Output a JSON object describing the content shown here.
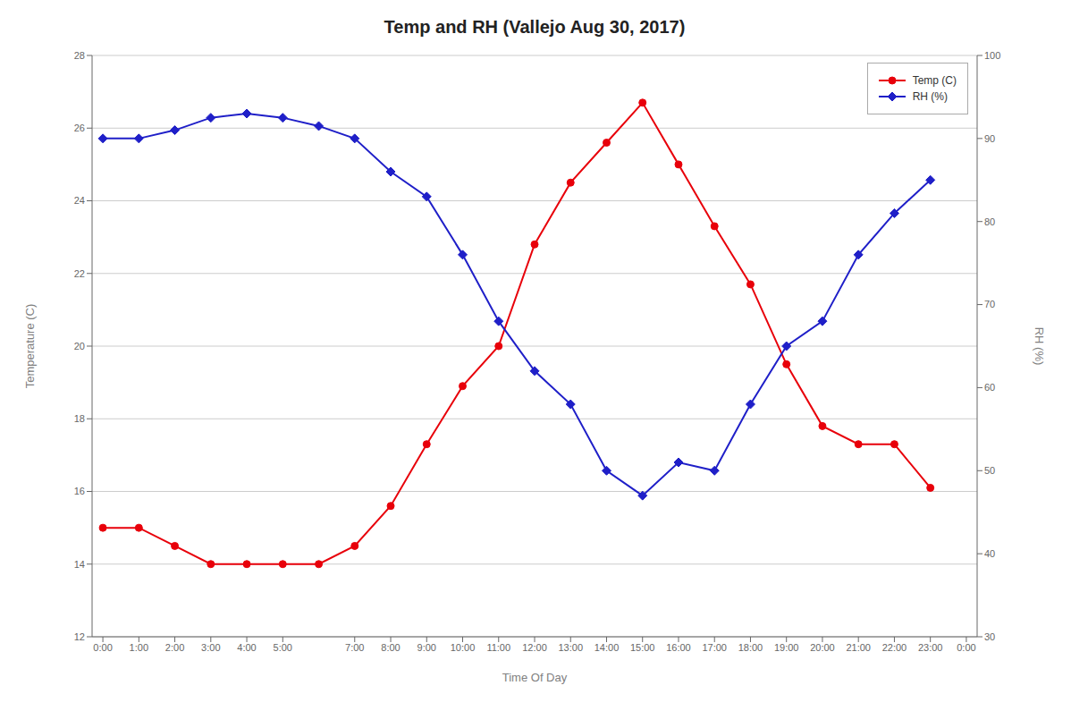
{
  "chart_data": {
    "type": "line",
    "title": "Temp and RH (Vallejo Aug 30, 2017)",
    "xlabel": "Time Of Day",
    "ylabel": "Temperature (C)",
    "y2label": "RH (%)",
    "x": [
      0,
      1,
      2,
      3,
      4,
      5,
      6,
      7,
      8,
      9,
      10,
      11,
      12,
      13,
      14,
      15,
      16,
      17,
      18,
      19,
      20,
      21,
      22,
      23
    ],
    "series": [
      {
        "name": "Temp (C)",
        "color": "#E8000A",
        "marker": "circle",
        "line_style": "solid",
        "values": [
          15.0,
          15.0,
          14.5,
          14.0,
          14.0,
          14.0,
          14.0,
          14.5,
          15.6,
          17.3,
          18.9,
          20.0,
          22.8,
          24.5,
          25.6,
          26.7,
          25.0,
          23.3,
          21.7,
          19.5,
          17.8,
          17.3,
          17.3,
          16.1
        ]
      },
      {
        "name": "RH (%)",
        "color": "#1F1FC8",
        "marker": "diamond",
        "line_style": "solid",
        "axis": "y2",
        "values": [
          90,
          90,
          91,
          92.5,
          93,
          92.5,
          91.5,
          90,
          86,
          83,
          76,
          68,
          62,
          58,
          50,
          47,
          51,
          50,
          58,
          65,
          68,
          76,
          81,
          85
        ]
      }
    ],
    "xlim": [
      -0.3,
      24.3
    ],
    "xticks": [
      {
        "value": 0,
        "label": "0:00"
      },
      {
        "value": 1,
        "label": "1:00"
      },
      {
        "value": 2,
        "label": "2:00"
      },
      {
        "value": 3,
        "label": "3:00"
      },
      {
        "value": 4,
        "label": "4:00"
      },
      {
        "value": 5,
        "label": "5:00"
      },
      {
        "value": 7,
        "label": "7:00"
      },
      {
        "value": 8,
        "label": "8:00"
      },
      {
        "value": 9,
        "label": "9:00"
      },
      {
        "value": 10,
        "label": "10:00"
      },
      {
        "value": 11,
        "label": "11:00"
      },
      {
        "value": 12,
        "label": "12:00"
      },
      {
        "value": 13,
        "label": "13:00"
      },
      {
        "value": 14,
        "label": "14:00"
      },
      {
        "value": 15,
        "label": "15:00"
      },
      {
        "value": 16,
        "label": "16:00"
      },
      {
        "value": 17,
        "label": "17:00"
      },
      {
        "value": 18,
        "label": "18:00"
      },
      {
        "value": 19,
        "label": "19:00"
      },
      {
        "value": 20,
        "label": "20:00"
      },
      {
        "value": 21,
        "label": "21:00"
      },
      {
        "value": 22,
        "label": "22:00"
      },
      {
        "value": 23,
        "label": "23:00"
      },
      {
        "value": 24,
        "label": "0:00"
      }
    ],
    "ylim": [
      12,
      28
    ],
    "yticks": [
      12,
      14,
      16,
      18,
      20,
      22,
      24,
      26,
      28
    ],
    "y2lim": [
      30,
      100
    ],
    "y2ticks": [
      30,
      40,
      50,
      60,
      70,
      80,
      90,
      100
    ],
    "grid": true,
    "legend": "upper right"
  }
}
